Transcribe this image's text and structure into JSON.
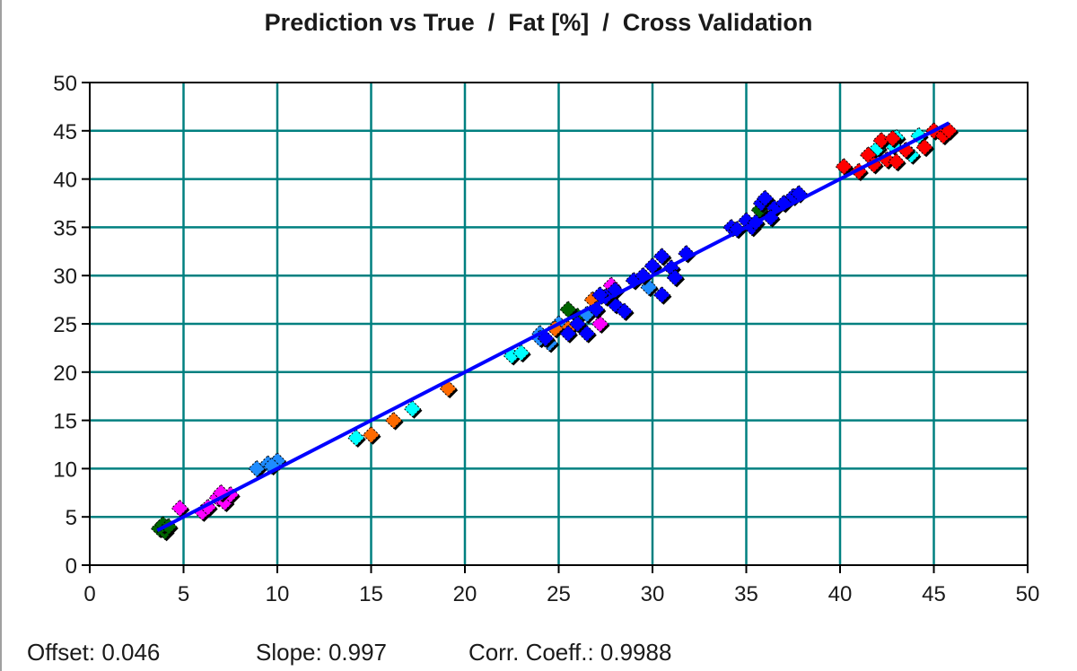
{
  "chart_data": {
    "type": "scatter",
    "title": "Prediction vs True  /  Fat [%]  /  Cross Validation",
    "xlabel": "",
    "ylabel": "",
    "xlim": [
      0,
      50
    ],
    "ylim": [
      0,
      50
    ],
    "xticks": [
      "0",
      "5",
      "10",
      "15",
      "20",
      "25",
      "30",
      "35",
      "40",
      "45",
      "50"
    ],
    "yticks": [
      "0",
      "5",
      "10",
      "15",
      "20",
      "25",
      "30",
      "35",
      "40",
      "45",
      "50"
    ],
    "grid": true,
    "grid_color": "#008080",
    "marker": "diamond",
    "fit_line": {
      "color": "#0000ff",
      "x": [
        3.6,
        45.8
      ],
      "y": [
        3.6,
        45.8
      ]
    },
    "series": [
      {
        "color": "#006400",
        "points": [
          [
            3.7,
            3.8
          ],
          [
            4.0,
            3.5
          ],
          [
            3.9,
            4.2
          ],
          [
            4.2,
            4.0
          ],
          [
            26.0,
            25.8
          ],
          [
            25.5,
            26.5
          ],
          [
            35.7,
            36.8
          ]
        ]
      },
      {
        "color": "#ff00ff",
        "points": [
          [
            4.8,
            5.9
          ],
          [
            6.0,
            5.5
          ],
          [
            6.3,
            6.0
          ],
          [
            6.8,
            7.0
          ],
          [
            7.2,
            6.5
          ],
          [
            7.5,
            7.3
          ],
          [
            7.0,
            7.5
          ],
          [
            27.8,
            29.0
          ],
          [
            27.2,
            25.0
          ]
        ]
      },
      {
        "color": "#1e8cff",
        "points": [
          [
            8.9,
            10.0
          ],
          [
            9.5,
            10.5
          ],
          [
            10.0,
            10.8
          ],
          [
            9.7,
            10.3
          ],
          [
            24.0,
            24.0
          ],
          [
            24.5,
            23.0
          ],
          [
            25.0,
            25.0
          ],
          [
            24.0,
            23.5
          ],
          [
            26.5,
            26.0
          ],
          [
            29.8,
            28.8
          ]
        ]
      },
      {
        "color": "#00ffff",
        "points": [
          [
            14.2,
            13.2
          ],
          [
            17.2,
            16.2
          ],
          [
            22.5,
            21.7
          ],
          [
            23.0,
            22.0
          ],
          [
            42.0,
            43.2
          ],
          [
            43.8,
            42.5
          ],
          [
            43.0,
            44.3
          ],
          [
            44.2,
            44.5
          ],
          [
            42.8,
            43.5
          ]
        ]
      },
      {
        "color": "#ff6a00",
        "points": [
          [
            15.0,
            13.5
          ],
          [
            16.2,
            15.0
          ],
          [
            19.1,
            18.3
          ],
          [
            26.8,
            27.5
          ],
          [
            25.5,
            24.5
          ],
          [
            24.8,
            24.5
          ]
        ]
      },
      {
        "color": "#0000ff",
        "points": [
          [
            25.5,
            24.0
          ],
          [
            26.0,
            25.0
          ],
          [
            27.0,
            26.5
          ],
          [
            28.0,
            27.0
          ],
          [
            28.5,
            26.3
          ],
          [
            29.0,
            29.5
          ],
          [
            29.5,
            30.0
          ],
          [
            30.0,
            31.0
          ],
          [
            30.5,
            32.0
          ],
          [
            31.0,
            30.8
          ],
          [
            30.5,
            28.0
          ],
          [
            31.2,
            29.8
          ],
          [
            31.8,
            32.3
          ],
          [
            28.0,
            28.5
          ],
          [
            27.5,
            27.8
          ],
          [
            26.5,
            24.0
          ],
          [
            24.3,
            23.5
          ],
          [
            27.2,
            28.0
          ],
          [
            34.2,
            35.0
          ],
          [
            34.5,
            34.8
          ],
          [
            35.0,
            35.7
          ],
          [
            35.3,
            35.0
          ],
          [
            35.8,
            37.5
          ],
          [
            36.0,
            38.0
          ],
          [
            36.5,
            37.0
          ],
          [
            37.0,
            37.5
          ],
          [
            37.5,
            38.2
          ],
          [
            37.8,
            38.5
          ],
          [
            36.3,
            36.0
          ],
          [
            35.5,
            35.5
          ]
        ]
      },
      {
        "color": "#ff0000",
        "points": [
          [
            40.2,
            41.3
          ],
          [
            41.0,
            40.8
          ],
          [
            41.5,
            42.5
          ],
          [
            42.2,
            44.0
          ],
          [
            42.5,
            42.0
          ],
          [
            42.8,
            44.2
          ],
          [
            43.5,
            43.0
          ],
          [
            44.5,
            43.3
          ],
          [
            45.0,
            45.0
          ],
          [
            45.5,
            44.5
          ],
          [
            45.8,
            45.0
          ],
          [
            41.8,
            41.5
          ],
          [
            43.0,
            41.8
          ]
        ]
      }
    ]
  },
  "stats": {
    "offset": "Offset: 0.046",
    "slope": "Slope: 0.997",
    "corr": "Corr. Coeff.: 0.9988"
  }
}
